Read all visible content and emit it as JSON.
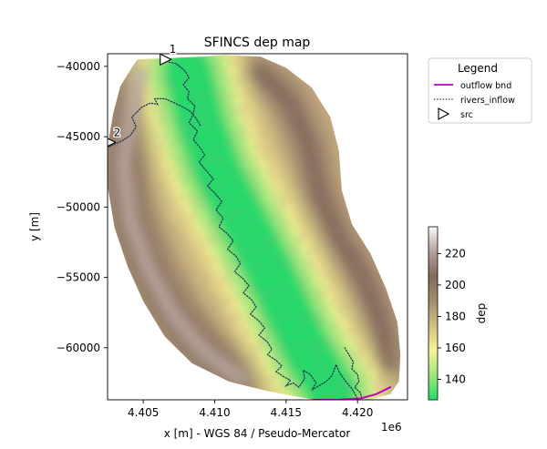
{
  "chart_data": {
    "type": "heatmap",
    "title": "SFINCS dep map",
    "xlabel": "x [m] - WGS 84 / Pseudo-Mercator",
    "ylabel": "y [m]",
    "x_offset_label": "1e6",
    "xlim": [
      4402500,
      4423500
    ],
    "ylim": [
      -63700,
      -39100
    ],
    "x_ticks": [
      4405000,
      4410000,
      4415000,
      4420000
    ],
    "x_tick_labels": [
      "4.405",
      "4.410",
      "4.415",
      "4.420"
    ],
    "y_ticks": [
      -40000,
      -45000,
      -50000,
      -55000,
      -60000
    ],
    "y_tick_labels": [
      "−40000",
      "−45000",
      "−50000",
      "−55000",
      "−60000"
    ],
    "colorbar": {
      "label": "dep",
      "range": [
        127,
        237
      ],
      "ticks": [
        140,
        160,
        180,
        200,
        220
      ],
      "tick_labels": [
        "140",
        "160",
        "180",
        "200",
        "220"
      ],
      "colormap": [
        "#22dd66",
        "#9ee87e",
        "#f6f394",
        "#d2c07f",
        "#a08e6a",
        "#836a5c",
        "#b3a09a",
        "#fcfafa"
      ]
    },
    "legend": {
      "title": "Legend",
      "placement": "outside-right",
      "entries": [
        {
          "label": "outflow bnd",
          "color": "#c000c0",
          "style": "solid"
        },
        {
          "label": "rivers_inflow",
          "color": "#1f3050",
          "style": "dotted"
        },
        {
          "label": "src",
          "color": "#000000",
          "style": "triangle-marker"
        }
      ]
    },
    "domain_outline": [
      [
        4404600,
        -39500
      ],
      [
        4409300,
        -39300
      ],
      [
        4410600,
        -39200
      ],
      [
        4413200,
        -39300
      ],
      [
        4415000,
        -40100
      ],
      [
        4416800,
        -41500
      ],
      [
        4418100,
        -43600
      ],
      [
        4418700,
        -46000
      ],
      [
        4418900,
        -48800
      ],
      [
        4419600,
        -51200
      ],
      [
        4420900,
        -53300
      ],
      [
        4422000,
        -55800
      ],
      [
        4422800,
        -58200
      ],
      [
        4423000,
        -60500
      ],
      [
        4422900,
        -62400
      ],
      [
        4422300,
        -63300
      ],
      [
        4420500,
        -63800
      ],
      [
        4417000,
        -63700
      ],
      [
        4413800,
        -63100
      ],
      [
        4411000,
        -62400
      ],
      [
        4408400,
        -61100
      ],
      [
        4406500,
        -59200
      ],
      [
        4405000,
        -56700
      ],
      [
        4403900,
        -54200
      ],
      [
        4403000,
        -51500
      ],
      [
        4402500,
        -48500
      ],
      [
        4402500,
        -45700
      ],
      [
        4402900,
        -43300
      ],
      [
        4403400,
        -41400
      ],
      [
        4404200,
        -40100
      ]
    ],
    "ridges": {
      "west": [
        [
          4404800,
          -40500
        ],
        [
          4404100,
          -43500
        ],
        [
          4403600,
          -47000
        ],
        [
          4404100,
          -51000
        ],
        [
          4405400,
          -54500
        ],
        [
          4407200,
          -57800
        ],
        [
          4409300,
          -60300
        ],
        [
          4411800,
          -62200
        ]
      ],
      "east": [
        [
          4413000,
          -40300
        ],
        [
          4415200,
          -42400
        ],
        [
          4416600,
          -45600
        ],
        [
          4417300,
          -49000
        ],
        [
          4418600,
          -52000
        ],
        [
          4420400,
          -55000
        ],
        [
          4421600,
          -58000
        ],
        [
          4422200,
          -61200
        ]
      ],
      "valley": [
        [
          4408100,
          -40300
        ],
        [
          4409000,
          -44000
        ],
        [
          4410200,
          -47500
        ],
        [
          4412000,
          -51000
        ],
        [
          4413800,
          -54500
        ],
        [
          4415300,
          -57800
        ],
        [
          4416600,
          -60500
        ],
        [
          4418200,
          -63100
        ]
      ]
    },
    "series": [
      {
        "name": "rivers_inflow",
        "x": [
          4406800,
          4407300,
          4407900,
          4408200,
          4407800,
          4408200,
          4408100,
          4408600,
          4408500,
          4408200,
          4408800,
          4408500,
          4409000,
          4409300,
          4408900,
          4409400,
          4409900,
          4409500,
          4410000,
          4410500,
          4410100,
          4410600,
          4410300,
          4410900,
          4411300,
          4410900,
          4411500,
          4411800,
          4411400,
          4412000,
          4412400,
          4412000,
          4412600,
          4412900,
          4412500,
          4413100,
          4413500,
          4413100,
          4413700,
          4414000,
          4413700,
          4414300,
          4414700,
          4414300,
          4414900,
          4415300,
          4415000,
          4415500,
          4415900,
          4416300,
          4416200,
          4416700,
          4417100,
          4416800,
          4417300,
          4417800,
          4418200,
          4418500,
          4418700,
          4419100,
          4419600,
          4420000
        ],
        "y": [
          -39700,
          -39800,
          -40300,
          -40800,
          -41300,
          -41800,
          -42300,
          -42800,
          -43400,
          -44000,
          -44600,
          -45200,
          -45800,
          -46300,
          -46800,
          -47400,
          -48000,
          -48500,
          -49000,
          -49600,
          -50200,
          -50800,
          -51400,
          -51900,
          -52400,
          -53000,
          -53500,
          -54000,
          -54600,
          -55100,
          -55600,
          -56100,
          -56600,
          -57100,
          -57600,
          -58100,
          -58600,
          -59100,
          -59600,
          -60100,
          -60500,
          -60900,
          -61300,
          -61700,
          -62100,
          -62300,
          -62700,
          -62500,
          -62800,
          -62200,
          -61600,
          -61900,
          -62500,
          -63000,
          -62700,
          -62400,
          -62000,
          -61200,
          -61700,
          -62300,
          -62900,
          -63600
        ]
      },
      {
        "name": "rivers_inflow",
        "x": [
          4402600,
          4403500,
          4404100,
          4404500,
          4404200,
          4404900,
          4405500,
          4406000,
          4405800,
          4406500,
          4407200,
          4407800,
          4408300,
          4408700,
          4409000
        ],
        "y": [
          -45700,
          -45300,
          -44900,
          -44300,
          -43600,
          -42900,
          -42600,
          -42700,
          -42300,
          -42300,
          -42600,
          -42900,
          -43200,
          -43700,
          -44200
        ]
      },
      {
        "name": "rivers_inflow",
        "x": [
          4419100,
          4419400,
          4419700,
          4419600,
          4420000,
          4420100,
          4419800,
          4420200,
          4420300
        ],
        "y": [
          -60000,
          -60500,
          -61000,
          -61500,
          -61900,
          -62400,
          -62800,
          -63200,
          -63600
        ]
      },
      {
        "name": "outflow bnd",
        "x": [
          4416900,
          4418500,
          4420200,
          4421300,
          4422300
        ],
        "y": [
          -63700,
          -63700,
          -63600,
          -63300,
          -62800
        ]
      }
    ],
    "sources": [
      {
        "label": "1",
        "x": 4406500,
        "y": -39500
      },
      {
        "label": "2",
        "x": 4402600,
        "y": -45400
      }
    ]
  }
}
